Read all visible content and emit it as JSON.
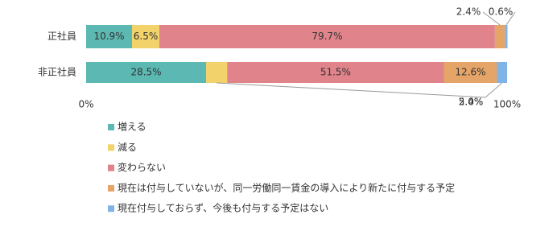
{
  "chart_data": {
    "type": "stacked-bar-horizontal",
    "categories": [
      "正社員",
      "非正社員"
    ],
    "series": [
      {
        "name": "増える",
        "color": "#5cb8b2",
        "values": [
          10.9,
          28.5
        ],
        "value_labels": [
          "10.9%",
          "28.5%"
        ]
      },
      {
        "name": "減る",
        "color": "#f2d36b",
        "values": [
          6.5,
          5.0
        ],
        "value_labels": [
          "6.5%",
          "5.0%"
        ]
      },
      {
        "name": "変わらない",
        "color": "#e0838a",
        "values": [
          79.7,
          51.5
        ],
        "value_labels": [
          "79.7%",
          "51.5%"
        ]
      },
      {
        "name": "現在は付与していないが、同一労働同一賃金の導入により新たに付与する予定",
        "color": "#e5a468",
        "values": [
          2.4,
          12.6
        ],
        "value_labels": [
          "2.4%",
          "12.6%"
        ]
      },
      {
        "name": "現在付与しておらず、今後も付与する予定はない",
        "color": "#80b4e6",
        "values": [
          0.6,
          2.4
        ],
        "value_labels": [
          "0.6%",
          "2.4%"
        ]
      }
    ],
    "xlim": [
      0,
      100
    ],
    "xticks": [
      {
        "value": 0,
        "label": "0%"
      },
      {
        "value": 100,
        "label": "100%"
      }
    ]
  }
}
